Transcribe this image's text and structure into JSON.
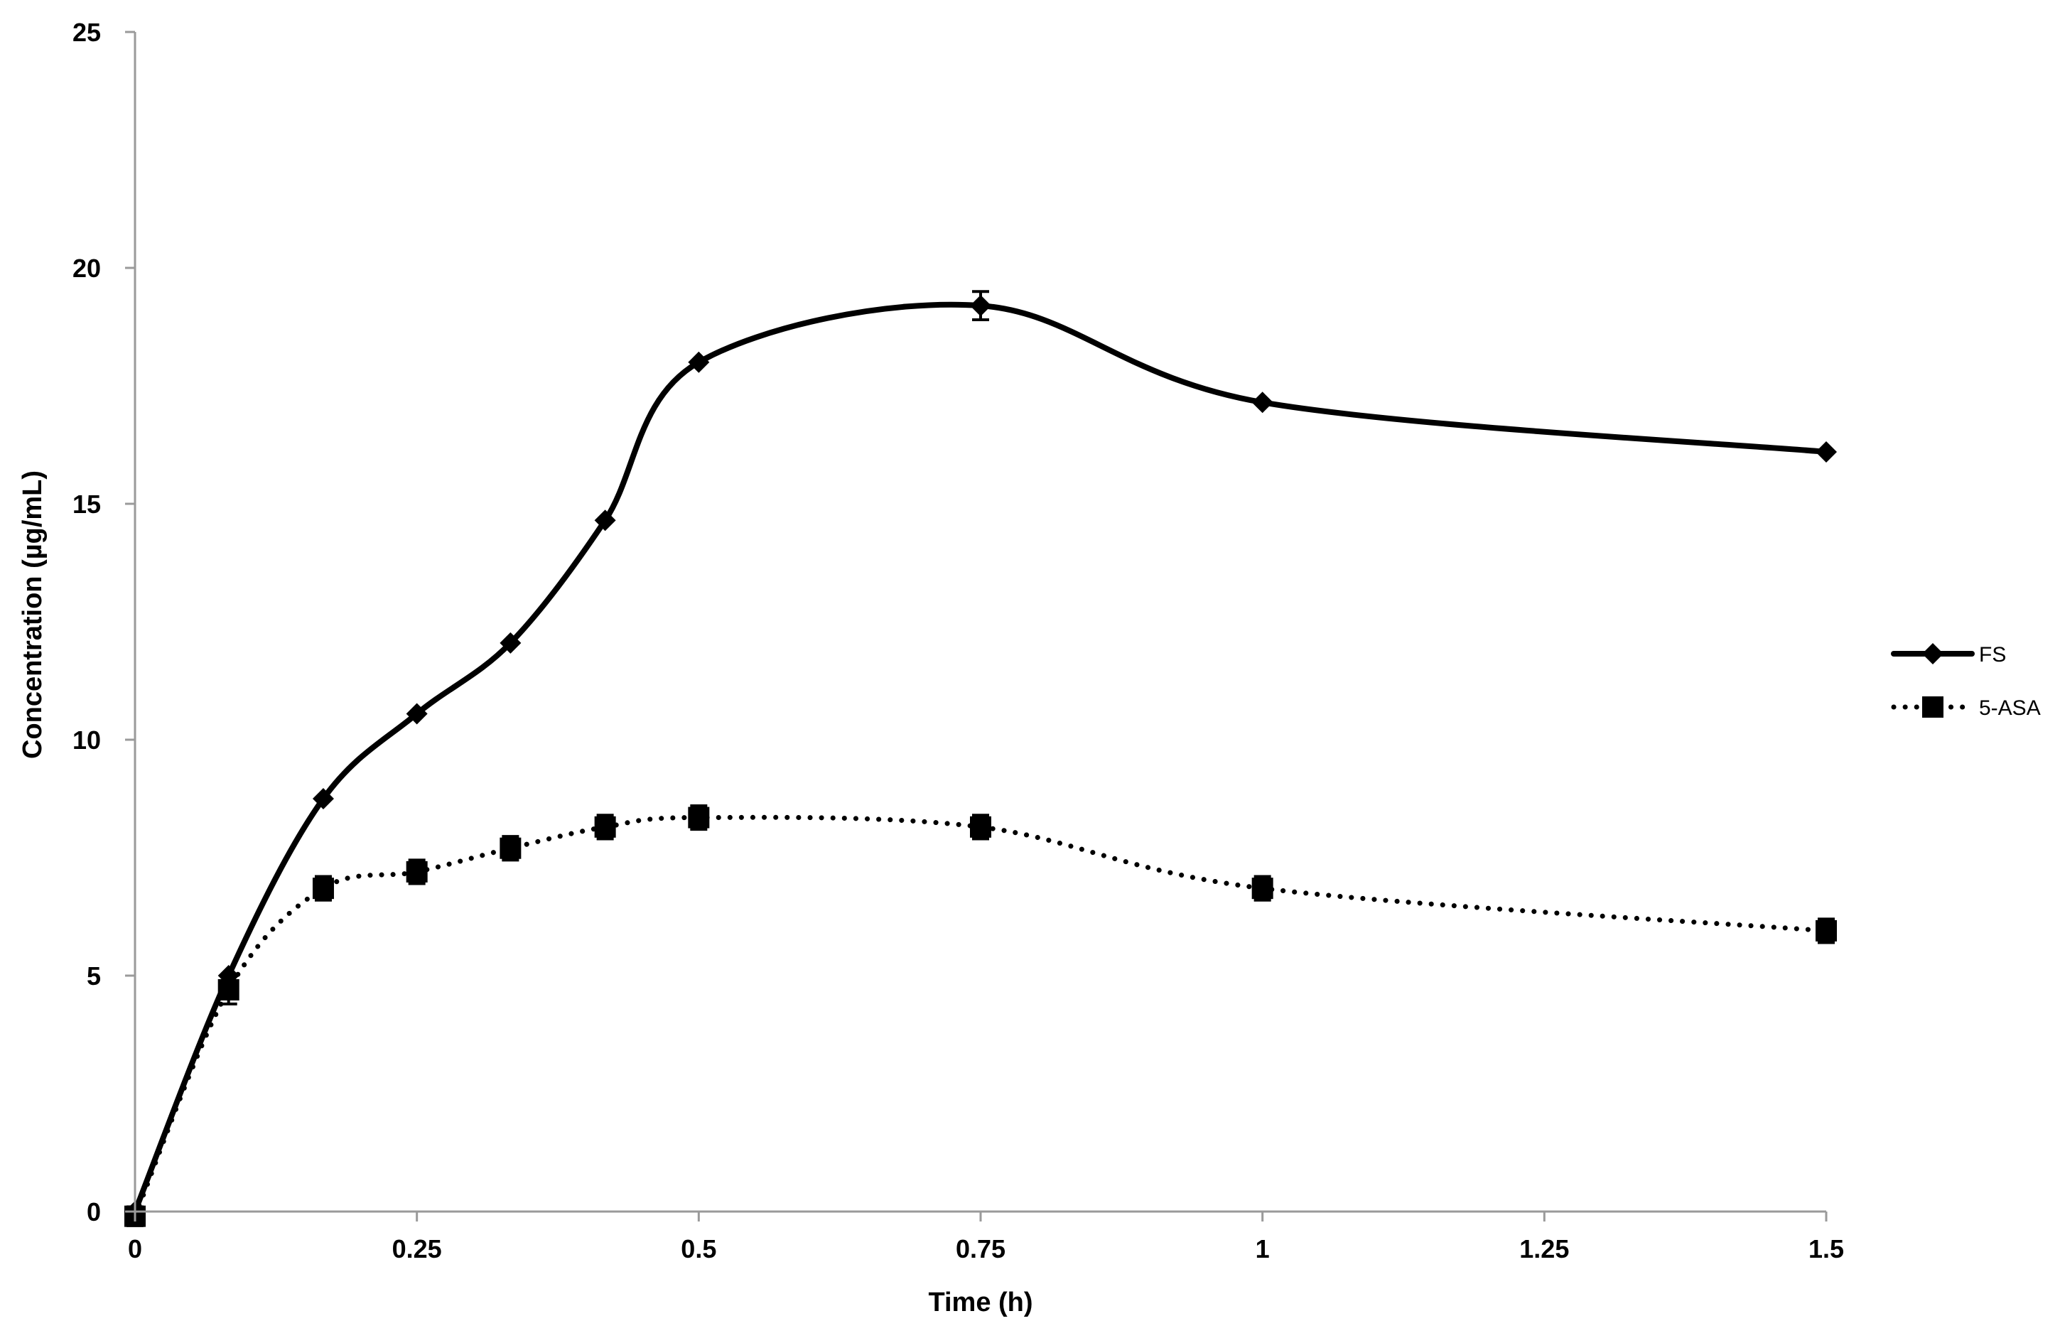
{
  "chart_data": {
    "type": "line",
    "title": "",
    "xlabel": "Time (h)",
    "ylabel": "Concentration (µg/mL)",
    "xlim": [
      0,
      1.5
    ],
    "ylim": [
      0,
      25
    ],
    "xticks": [
      0,
      0.25,
      0.5,
      0.75,
      1,
      1.25,
      1.5
    ],
    "yticks": [
      0,
      5,
      10,
      15,
      20,
      25
    ],
    "xtick_labels": [
      "0",
      "0.25",
      "0.5",
      "0.75",
      "1",
      "1.25",
      "1.5"
    ],
    "ytick_labels": [
      "0",
      "5",
      "10",
      "15",
      "20",
      "25"
    ],
    "grid": false,
    "legend_position": "right",
    "series": [
      {
        "name": "FS",
        "line_style": "solid",
        "marker": "diamond",
        "color": "#000000",
        "x": [
          0,
          0.083,
          0.167,
          0.25,
          0.333,
          0.417,
          0.5,
          0.75,
          1,
          1.5
        ],
        "y": [
          0,
          5.0,
          8.75,
          10.55,
          12.05,
          14.65,
          18.0,
          19.2,
          17.15,
          16.1
        ],
        "error": [
          0,
          0,
          0,
          0,
          0,
          0,
          0,
          0.3,
          0,
          0
        ]
      },
      {
        "name": "5-ASA",
        "line_style": "dotted",
        "marker": "square",
        "color": "#000000",
        "x": [
          0,
          0.083,
          0.167,
          0.25,
          0.333,
          0.417,
          0.5,
          0.75,
          1,
          1.5
        ],
        "y": [
          -0.1,
          4.7,
          6.85,
          7.2,
          7.7,
          8.15,
          8.35,
          8.15,
          6.85,
          5.95
        ],
        "error": [
          0.2,
          0.3,
          0.25,
          0.25,
          0.25,
          0.25,
          0.25,
          0.25,
          0.25,
          0.25
        ]
      }
    ]
  }
}
